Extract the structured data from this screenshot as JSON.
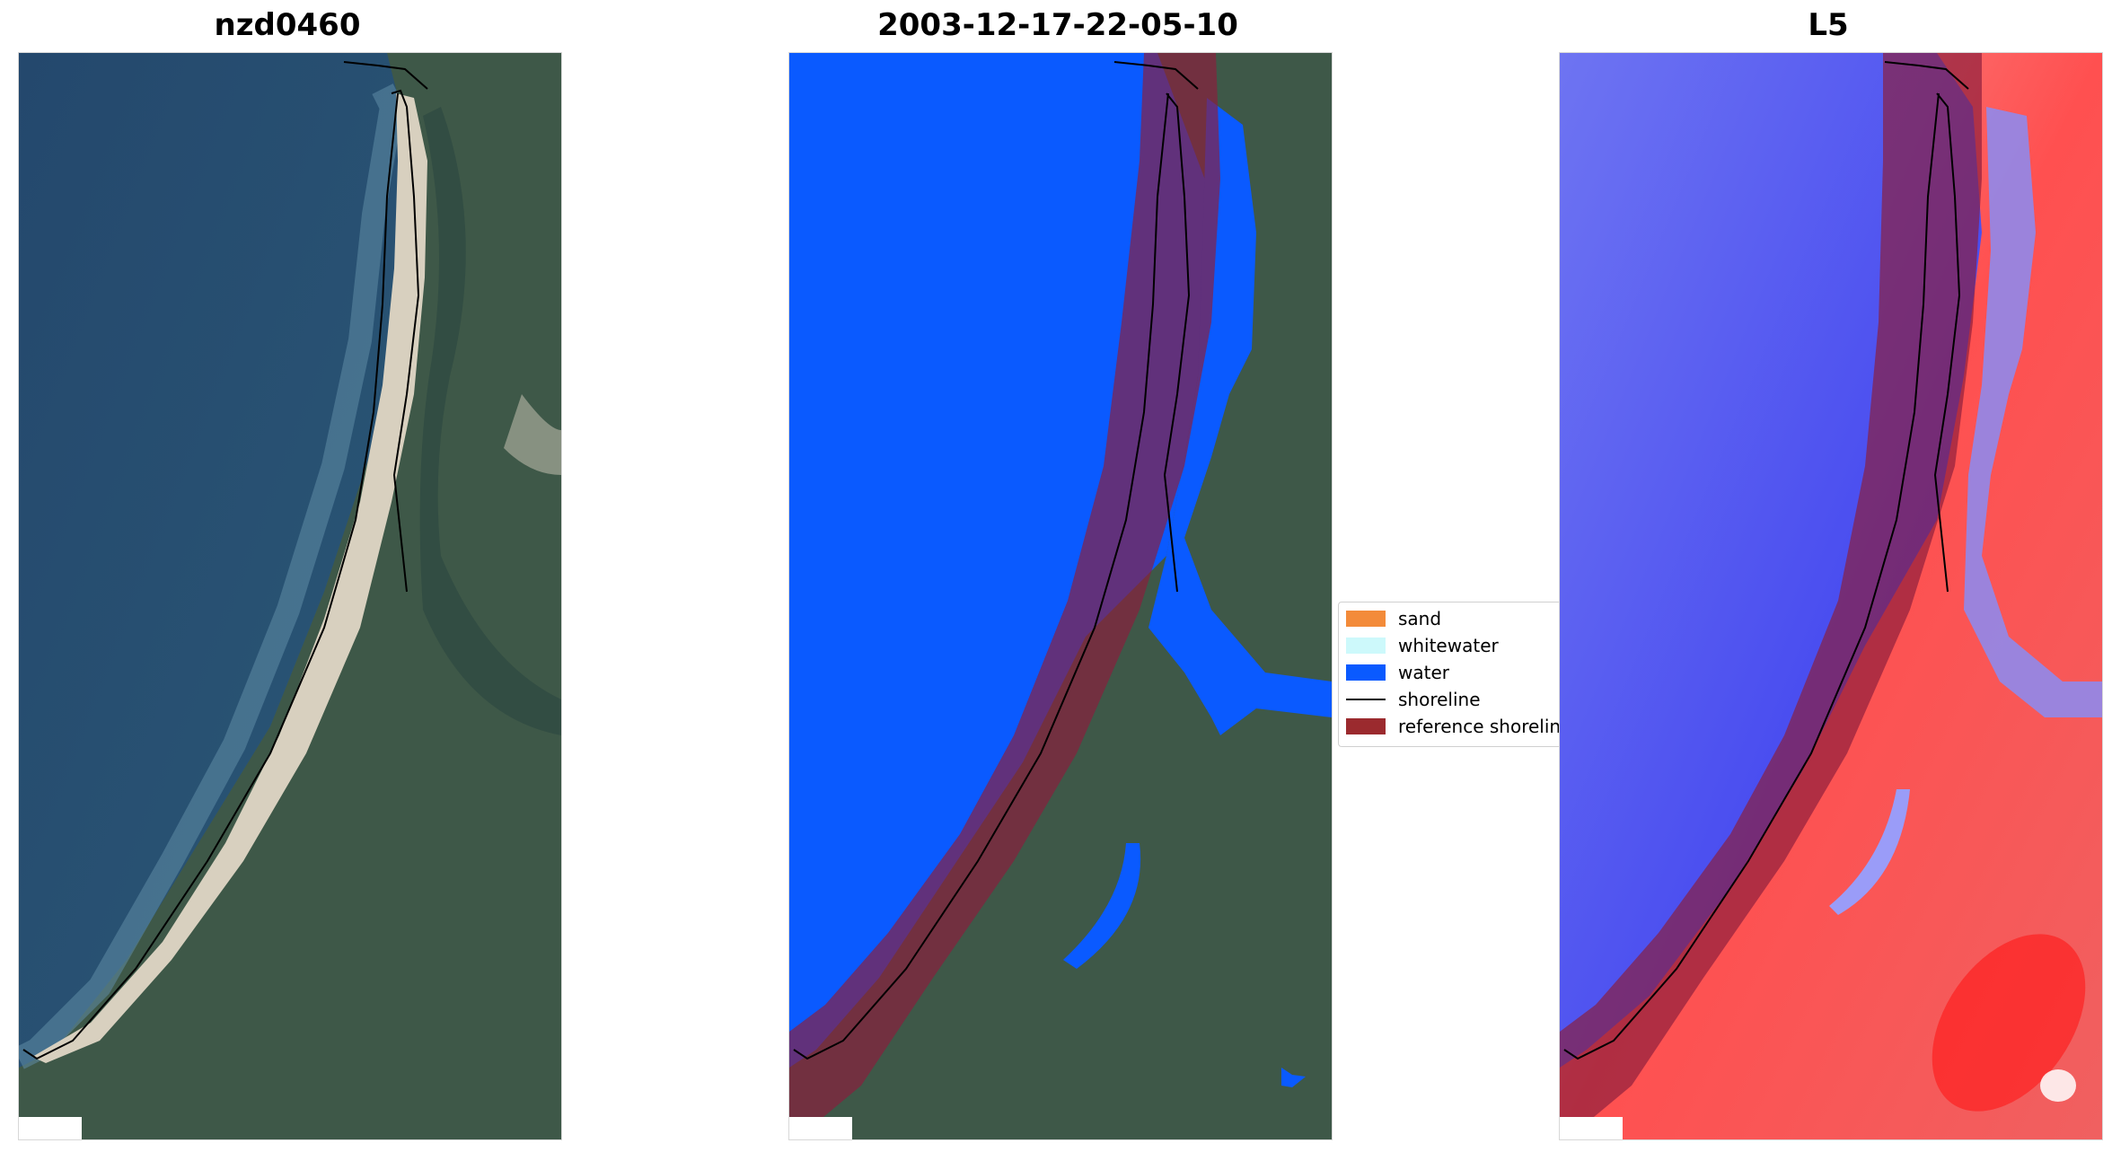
{
  "panels": [
    {
      "title": "nzd0460"
    },
    {
      "title": "2003-12-17-22-05-10"
    },
    {
      "title": "L5"
    }
  ],
  "legend": {
    "items": [
      {
        "label": "sand",
        "color": "#f38b3a",
        "kind": "swatch"
      },
      {
        "label": "whitewater",
        "color": "#cdf9fb",
        "kind": "swatch"
      },
      {
        "label": "water",
        "color": "#0a5aff",
        "kind": "swatch"
      },
      {
        "label": "shoreline",
        "color": "#000000",
        "kind": "line"
      },
      {
        "label": "reference shoreline",
        "color": "#9b2a2e",
        "kind": "swatch"
      }
    ]
  },
  "colors": {
    "ocean": "#234a72",
    "land": "#3f5a46",
    "sand": "#d9d2c2",
    "water_class": "#0a5aff",
    "reference_buffer": "#8a1e3c",
    "index_negative": "#2626ff",
    "index_positive": "#ff2a2a"
  }
}
